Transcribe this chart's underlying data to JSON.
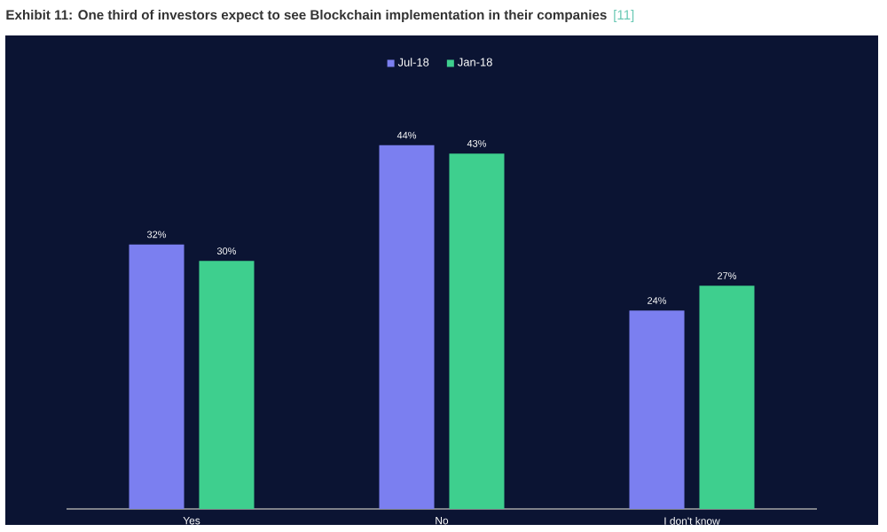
{
  "chart_data": {
    "type": "bar",
    "title": "Exhibit 11: One third of investors expect to see Blockchain implementation in their companies",
    "annotations": [
      "[11]"
    ],
    "categories": [
      "Yes",
      "No",
      "I don't know"
    ],
    "series": [
      {
        "name": "Jul-18",
        "color": "#7b7ff0",
        "values": [
          32,
          44,
          24
        ],
        "value_labels": [
          "32%",
          "44%",
          "24%"
        ]
      },
      {
        "name": "Jan-18",
        "color": "#3ecf8e",
        "values": [
          30,
          43,
          27
        ],
        "value_labels": [
          "30%",
          "43%",
          "27%"
        ]
      }
    ],
    "tick_labels": "x",
    "legend": "top"
  }
}
